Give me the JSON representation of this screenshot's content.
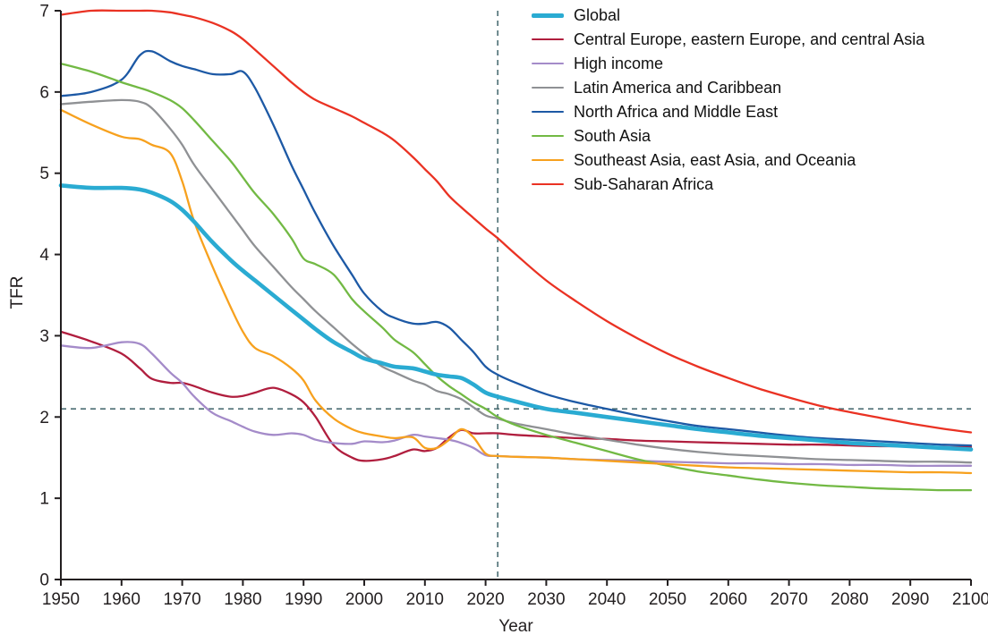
{
  "chart_data": {
    "type": "line",
    "title": "",
    "xlabel": "Year",
    "ylabel": "TFR",
    "xlim": [
      1950,
      2100
    ],
    "ylim": [
      0,
      7
    ],
    "x_ticks": [
      1950,
      1960,
      1970,
      1980,
      1990,
      2000,
      2010,
      2020,
      2030,
      2040,
      2050,
      2060,
      2070,
      2080,
      2090,
      2100
    ],
    "y_ticks": [
      0,
      1,
      2,
      3,
      4,
      5,
      6,
      7
    ],
    "grid": false,
    "legend_position": "top-right",
    "axis_color": "#231f20",
    "reference_lines": {
      "replacement_tfr": 2.1,
      "forecast_start_year": 2022,
      "style": "dashed",
      "color": "#4c6e74"
    },
    "x": [
      1950,
      1955,
      1960,
      1963,
      1965,
      1968,
      1970,
      1972,
      1975,
      1978,
      1980,
      1982,
      1985,
      1988,
      1990,
      1992,
      1995,
      1998,
      2000,
      2003,
      2005,
      2008,
      2010,
      2012,
      2014,
      2016,
      2018,
      2020,
      2022,
      2025,
      2030,
      2035,
      2040,
      2045,
      2050,
      2055,
      2060,
      2065,
      2070,
      2075,
      2080,
      2085,
      2090,
      2095,
      2100
    ],
    "series": [
      {
        "name": "Global",
        "color": "#2aabd2",
        "thick": true,
        "values": [
          4.85,
          4.82,
          4.82,
          4.8,
          4.76,
          4.66,
          4.55,
          4.4,
          4.15,
          3.93,
          3.8,
          3.68,
          3.5,
          3.32,
          3.2,
          3.08,
          2.92,
          2.8,
          2.72,
          2.66,
          2.62,
          2.6,
          2.56,
          2.52,
          2.5,
          2.48,
          2.4,
          2.3,
          2.25,
          2.19,
          2.1,
          2.05,
          2.0,
          1.95,
          1.9,
          1.85,
          1.81,
          1.77,
          1.74,
          1.71,
          1.68,
          1.66,
          1.64,
          1.62,
          1.6
        ]
      },
      {
        "name": "Central Europe, eastern Europe, and central Asia",
        "color": "#b01e3e",
        "thick": false,
        "values": [
          3.05,
          2.93,
          2.78,
          2.6,
          2.47,
          2.42,
          2.42,
          2.38,
          2.3,
          2.25,
          2.26,
          2.3,
          2.36,
          2.28,
          2.18,
          2.0,
          1.65,
          1.5,
          1.46,
          1.48,
          1.52,
          1.6,
          1.58,
          1.62,
          1.75,
          1.84,
          1.8,
          1.8,
          1.8,
          1.78,
          1.76,
          1.74,
          1.73,
          1.71,
          1.7,
          1.69,
          1.68,
          1.67,
          1.66,
          1.66,
          1.65,
          1.64,
          1.64,
          1.63,
          1.63
        ]
      },
      {
        "name": "High income",
        "color": "#a48bc9",
        "thick": false,
        "values": [
          2.88,
          2.85,
          2.92,
          2.9,
          2.78,
          2.55,
          2.42,
          2.25,
          2.05,
          1.95,
          1.88,
          1.82,
          1.78,
          1.8,
          1.78,
          1.72,
          1.68,
          1.67,
          1.7,
          1.69,
          1.71,
          1.78,
          1.76,
          1.74,
          1.72,
          1.68,
          1.62,
          1.53,
          1.52,
          1.51,
          1.5,
          1.48,
          1.47,
          1.46,
          1.45,
          1.44,
          1.43,
          1.43,
          1.42,
          1.42,
          1.41,
          1.41,
          1.4,
          1.4,
          1.4
        ]
      },
      {
        "name": "Latin America and Caribbean",
        "color": "#8f9194",
        "thick": false,
        "values": [
          5.85,
          5.88,
          5.9,
          5.88,
          5.8,
          5.55,
          5.35,
          5.1,
          4.8,
          4.5,
          4.3,
          4.1,
          3.85,
          3.6,
          3.45,
          3.3,
          3.1,
          2.9,
          2.78,
          2.62,
          2.55,
          2.45,
          2.4,
          2.32,
          2.28,
          2.22,
          2.12,
          2.02,
          1.98,
          1.92,
          1.85,
          1.78,
          1.72,
          1.66,
          1.61,
          1.57,
          1.54,
          1.52,
          1.5,
          1.48,
          1.47,
          1.46,
          1.45,
          1.45,
          1.44
        ]
      },
      {
        "name": "North Africa and Middle East",
        "color": "#1d59a5",
        "thick": false,
        "values": [
          5.95,
          6.0,
          6.15,
          6.45,
          6.5,
          6.38,
          6.32,
          6.28,
          6.22,
          6.22,
          6.25,
          6.05,
          5.6,
          5.1,
          4.8,
          4.5,
          4.1,
          3.75,
          3.52,
          3.3,
          3.22,
          3.15,
          3.15,
          3.17,
          3.1,
          2.95,
          2.8,
          2.62,
          2.52,
          2.42,
          2.28,
          2.18,
          2.1,
          2.02,
          1.95,
          1.89,
          1.85,
          1.81,
          1.77,
          1.74,
          1.72,
          1.7,
          1.68,
          1.66,
          1.65
        ]
      },
      {
        "name": "South Asia",
        "color": "#72b944",
        "thick": false,
        "values": [
          6.35,
          6.25,
          6.12,
          6.05,
          6.0,
          5.9,
          5.8,
          5.65,
          5.4,
          5.15,
          4.95,
          4.75,
          4.5,
          4.2,
          3.95,
          3.88,
          3.75,
          3.45,
          3.3,
          3.1,
          2.95,
          2.8,
          2.65,
          2.5,
          2.38,
          2.28,
          2.18,
          2.1,
          2.0,
          1.9,
          1.78,
          1.68,
          1.58,
          1.48,
          1.4,
          1.33,
          1.28,
          1.23,
          1.19,
          1.16,
          1.14,
          1.12,
          1.11,
          1.1,
          1.1
        ]
      },
      {
        "name": "Southeast Asia, east Asia, and Oceania",
        "color": "#f7a11e",
        "thick": false,
        "values": [
          5.78,
          5.6,
          5.45,
          5.42,
          5.35,
          5.25,
          4.9,
          4.4,
          3.85,
          3.35,
          3.05,
          2.85,
          2.75,
          2.6,
          2.45,
          2.2,
          1.98,
          1.85,
          1.8,
          1.76,
          1.74,
          1.75,
          1.62,
          1.62,
          1.72,
          1.85,
          1.75,
          1.55,
          1.52,
          1.51,
          1.5,
          1.48,
          1.46,
          1.44,
          1.42,
          1.4,
          1.38,
          1.37,
          1.36,
          1.35,
          1.34,
          1.33,
          1.32,
          1.32,
          1.31
        ]
      },
      {
        "name": "Sub-Saharan Africa",
        "color": "#ea3223",
        "thick": false,
        "values": [
          6.95,
          7.0,
          7.0,
          7.0,
          7.0,
          6.98,
          6.95,
          6.92,
          6.85,
          6.75,
          6.65,
          6.52,
          6.32,
          6.12,
          6.0,
          5.9,
          5.8,
          5.7,
          5.62,
          5.5,
          5.4,
          5.2,
          5.05,
          4.9,
          4.72,
          4.58,
          4.45,
          4.32,
          4.2,
          4.0,
          3.68,
          3.42,
          3.18,
          2.97,
          2.78,
          2.62,
          2.48,
          2.35,
          2.24,
          2.14,
          2.06,
          1.99,
          1.92,
          1.86,
          1.81
        ]
      }
    ]
  }
}
